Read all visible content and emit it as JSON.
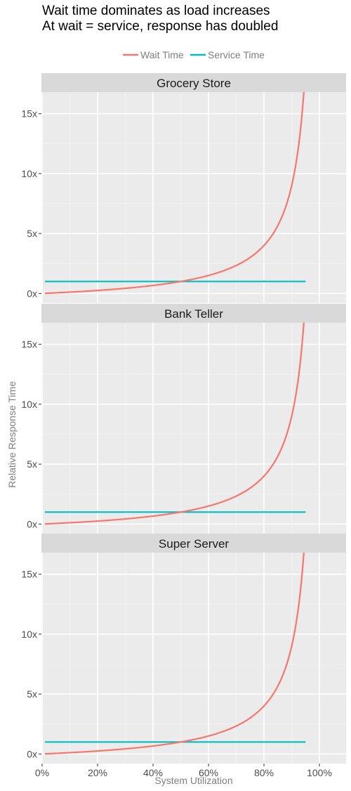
{
  "title_lines": [
    "Wait time dominates as load increases",
    "At wait = service, response has doubled"
  ],
  "chart_data": {
    "type": "line",
    "xlabel": "System Utilization",
    "ylabel": "Relative Response Time",
    "xlim": [
      0,
      1
    ],
    "ylim": [
      -0.8,
      16.8
    ],
    "x_ticks": [
      0,
      0.2,
      0.4,
      0.6,
      0.8,
      1.0
    ],
    "x_tick_labels": [
      "0%",
      "20%",
      "40%",
      "60%",
      "80%",
      "100%"
    ],
    "y_ticks": [
      0,
      5,
      10,
      15
    ],
    "y_tick_labels": [
      "0x",
      "5x",
      "10x",
      "15x"
    ],
    "grid": true,
    "legend_position": "top",
    "legend": [
      {
        "name": "Wait Time",
        "color": "#F8766D"
      },
      {
        "name": "Service Time",
        "color": "#00BFC4"
      }
    ],
    "panels": [
      "Grocery Store",
      "Bank Teller",
      "Super Server"
    ],
    "x": [
      0.01,
      0.1,
      0.2,
      0.3,
      0.4,
      0.5,
      0.6,
      0.7,
      0.75,
      0.8,
      0.85,
      0.9,
      0.92,
      0.94,
      0.95
    ],
    "series": [
      {
        "name": "Wait Time",
        "values": [
          0.01,
          0.11,
          0.25,
          0.43,
          0.67,
          1.0,
          1.5,
          2.33,
          3.0,
          4.0,
          5.67,
          9.0,
          11.5,
          15.67,
          19.0
        ]
      },
      {
        "name": "Service Time",
        "values": [
          1,
          1,
          1,
          1,
          1,
          1,
          1,
          1,
          1,
          1,
          1,
          1,
          1,
          1,
          1
        ]
      }
    ]
  }
}
